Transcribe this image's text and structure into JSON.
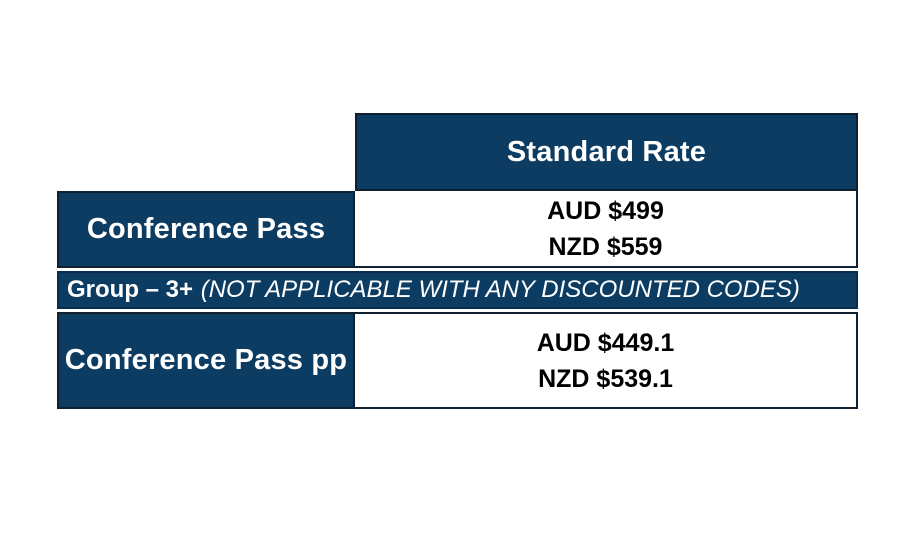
{
  "page": {
    "background_color": "#ffffff"
  },
  "colors": {
    "navy_fill": "#0d3c63",
    "cell_border": "#10202f",
    "banner_border": "#092c4b",
    "light_text": "#ffffff",
    "dark_text": "#000000"
  },
  "table": {
    "header": {
      "label": "Standard Rate"
    },
    "rows": [
      {
        "label": "Conference Pass",
        "prices": [
          "AUD $499",
          "NZD $559"
        ]
      },
      {
        "label": "Conference Pass pp",
        "prices": [
          "AUD $449.1",
          "NZD $539.1"
        ]
      }
    ],
    "group_banner": {
      "bold_text": "Group – 3+",
      "italic_text": "(NOT APPLICABLE WITH ANY DISCOUNTED CODES)"
    }
  }
}
